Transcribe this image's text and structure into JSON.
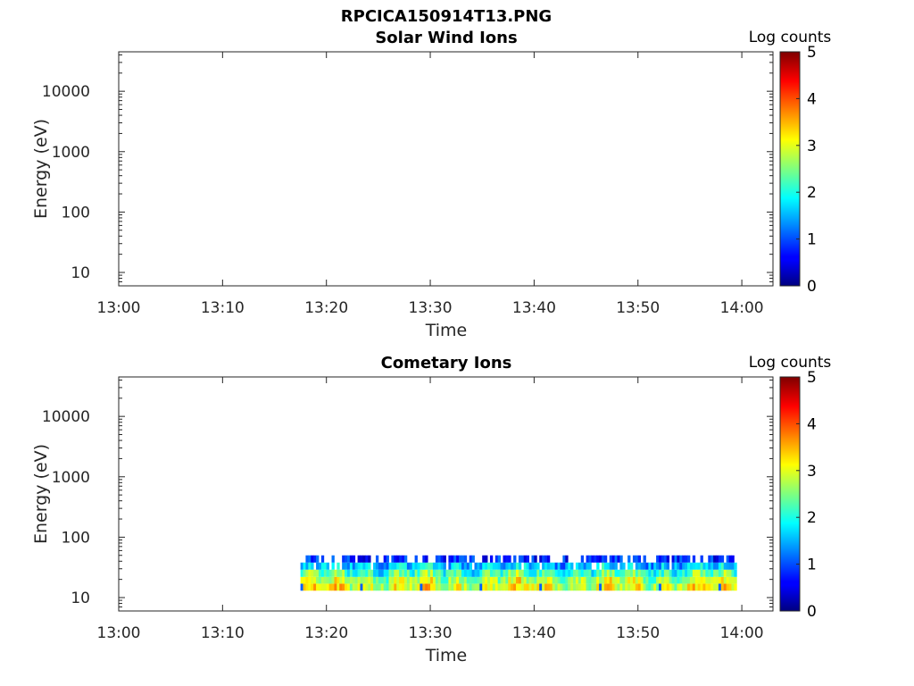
{
  "chart_data": [
    {
      "type": "heatmap",
      "suptitle": "RPCICA150914T13.PNG",
      "title": "Solar Wind Ions",
      "xlabel": "Time",
      "ylabel": "Energy (eV)",
      "x_ticks": [
        "13:00",
        "13:10",
        "13:20",
        "13:30",
        "13:40",
        "13:50",
        "14:00"
      ],
      "xlim": [
        "13:00",
        "14:03"
      ],
      "y_scale": "log",
      "y_ticks": [
        10,
        100,
        1000,
        10000
      ],
      "ylim": [
        6,
        45000
      ],
      "colorbar": {
        "label": "Log counts",
        "ticks": [
          0,
          1,
          2,
          3,
          4,
          5
        ],
        "range": [
          0,
          5
        ],
        "colormap": "jet"
      },
      "data": []
    },
    {
      "type": "heatmap",
      "title": "Cometary Ions",
      "xlabel": "Time",
      "ylabel": "Energy (eV)",
      "x_ticks": [
        "13:00",
        "13:10",
        "13:20",
        "13:30",
        "13:40",
        "13:50",
        "14:00"
      ],
      "xlim": [
        "13:00",
        "14:03"
      ],
      "y_scale": "log",
      "y_ticks": [
        10,
        100,
        1000,
        10000
      ],
      "ylim": [
        6,
        45000
      ],
      "colorbar": {
        "label": "Log counts",
        "ticks": [
          0,
          1,
          2,
          3,
          4,
          5
        ],
        "range": [
          0,
          5
        ],
        "colormap": "jet"
      },
      "data_time_range": [
        "13:17.5",
        "13:59.5"
      ],
      "energy_bins": [
        {
          "energy_range": [
            13,
            17
          ],
          "log_counts_typical": 3.0
        },
        {
          "energy_range": [
            17,
            22
          ],
          "log_counts_typical": 2.7
        },
        {
          "energy_range": [
            22,
            29
          ],
          "log_counts_typical": 2.2
        },
        {
          "energy_range": [
            29,
            38
          ],
          "log_counts_typical": 1.6
        },
        {
          "energy_range": [
            38,
            50
          ],
          "log_counts_typical": 0.8
        }
      ]
    }
  ]
}
